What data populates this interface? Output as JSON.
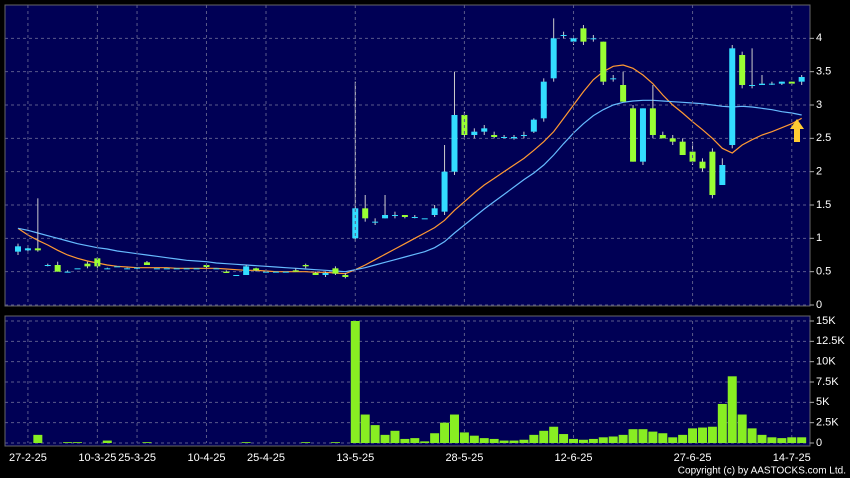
{
  "chart_data": [
    {
      "type": "candlestick",
      "ylim": [
        0,
        4.5
      ],
      "yticks": [
        0,
        0.5,
        1,
        1.5,
        2,
        2.5,
        3,
        3.5,
        4
      ],
      "grid": true,
      "up_color": "#33ddff",
      "down_color": "#99ff33",
      "open": [
        0.8,
        0.82,
        0.85,
        0.6,
        0.6,
        0.5,
        0.55,
        0.62,
        0.7,
        0.55,
        0.58,
        0.55,
        0.55,
        0.64,
        0.55,
        0.55,
        0.55,
        0.55,
        0.55,
        0.6,
        0.55,
        0.5,
        0.45,
        0.45,
        0.55,
        0.5,
        0.5,
        0.5,
        0.52,
        0.6,
        0.48,
        0.45,
        0.55,
        0.45,
        1.0,
        1.45,
        1.25,
        1.3,
        1.35,
        1.35,
        1.32,
        1.3,
        1.35,
        1.4,
        2.0,
        2.85,
        2.55,
        2.6,
        2.55,
        2.52,
        2.5,
        2.55,
        2.6,
        2.8,
        3.4,
        4.05,
        3.95,
        4.15,
        4.0,
        3.95,
        3.4,
        3.3,
        2.95,
        2.15,
        2.95,
        2.55,
        2.5,
        2.45,
        2.3,
        2.15,
        2.3,
        1.8,
        2.4,
        3.75,
        3.3,
        3.3,
        3.32,
        3.32,
        3.35,
        3.35
      ],
      "high": [
        0.92,
        0.9,
        1.6,
        0.62,
        0.65,
        0.52,
        0.55,
        0.65,
        0.72,
        0.56,
        0.58,
        0.56,
        0.56,
        0.66,
        0.55,
        0.55,
        0.55,
        0.55,
        0.55,
        0.62,
        0.55,
        0.52,
        0.45,
        0.6,
        0.56,
        0.5,
        0.5,
        0.5,
        0.55,
        0.62,
        0.5,
        0.5,
        0.58,
        0.48,
        3.35,
        1.65,
        1.3,
        1.65,
        1.4,
        1.35,
        1.35,
        1.3,
        1.5,
        2.4,
        3.5,
        2.9,
        2.65,
        2.7,
        2.6,
        2.55,
        2.55,
        2.6,
        2.8,
        3.4,
        4.3,
        4.1,
        4.05,
        4.2,
        4.05,
        3.95,
        3.45,
        3.5,
        3.0,
        2.95,
        3.3,
        2.6,
        2.55,
        2.5,
        2.45,
        2.2,
        2.35,
        2.2,
        3.9,
        3.8,
        3.85,
        3.45,
        3.35,
        3.35,
        3.35,
        3.45
      ],
      "low": [
        0.75,
        0.8,
        0.8,
        0.58,
        0.5,
        0.5,
        0.55,
        0.55,
        0.55,
        0.54,
        0.58,
        0.55,
        0.54,
        0.6,
        0.55,
        0.55,
        0.55,
        0.55,
        0.55,
        0.55,
        0.55,
        0.48,
        0.45,
        0.45,
        0.5,
        0.5,
        0.5,
        0.5,
        0.5,
        0.55,
        0.45,
        0.42,
        0.45,
        0.4,
        0.95,
        1.25,
        1.2,
        1.3,
        1.3,
        1.3,
        1.3,
        1.3,
        1.32,
        1.35,
        1.95,
        2.5,
        2.5,
        2.55,
        2.5,
        2.5,
        2.48,
        2.5,
        2.58,
        2.75,
        3.35,
        4.0,
        3.9,
        3.9,
        3.95,
        3.3,
        3.35,
        3.05,
        2.15,
        2.1,
        2.5,
        2.5,
        2.4,
        2.25,
        2.1,
        2.0,
        1.6,
        1.8,
        2.35,
        3.25,
        3.25,
        3.3,
        3.3,
        3.3,
        3.3,
        3.3
      ],
      "close": [
        0.88,
        0.85,
        0.82,
        0.6,
        0.5,
        0.5,
        0.55,
        0.58,
        0.58,
        0.55,
        0.58,
        0.55,
        0.56,
        0.6,
        0.55,
        0.55,
        0.55,
        0.55,
        0.55,
        0.57,
        0.55,
        0.48,
        0.45,
        0.58,
        0.52,
        0.5,
        0.5,
        0.5,
        0.5,
        0.58,
        0.45,
        0.48,
        0.47,
        0.42,
        1.45,
        1.3,
        1.25,
        1.35,
        1.35,
        1.32,
        1.32,
        1.3,
        1.45,
        2.0,
        2.85,
        2.55,
        2.6,
        2.65,
        2.52,
        2.52,
        2.52,
        2.55,
        2.78,
        3.35,
        4.0,
        4.05,
        4.0,
        3.95,
        4.0,
        3.35,
        3.4,
        3.05,
        2.15,
        2.95,
        2.55,
        2.5,
        2.45,
        2.25,
        2.15,
        2.05,
        1.65,
        2.1,
        3.85,
        3.3,
        3.3,
        3.32,
        3.32,
        3.35,
        3.32,
        3.42
      ],
      "series": [
        {
          "color": "#ff9933",
          "values": [
            1.15,
            1.05,
            0.97,
            0.9,
            0.82,
            0.75,
            0.7,
            0.66,
            0.63,
            0.6,
            0.58,
            0.57,
            0.56,
            0.56,
            0.56,
            0.56,
            0.55,
            0.55,
            0.55,
            0.55,
            0.55,
            0.54,
            0.53,
            0.52,
            0.52,
            0.51,
            0.5,
            0.5,
            0.5,
            0.5,
            0.49,
            0.49,
            0.48,
            0.47,
            0.53,
            0.6,
            0.68,
            0.76,
            0.84,
            0.92,
            1.0,
            1.08,
            1.16,
            1.27,
            1.42,
            1.55,
            1.68,
            1.8,
            1.9,
            2.0,
            2.1,
            2.2,
            2.32,
            2.45,
            2.6,
            2.8,
            3.0,
            3.2,
            3.38,
            3.5,
            3.58,
            3.6,
            3.55,
            3.45,
            3.32,
            3.15,
            3.0,
            2.88,
            2.75,
            2.63,
            2.5,
            2.35,
            2.28,
            2.4,
            2.48,
            2.55,
            2.6,
            2.66,
            2.72,
            2.8
          ]
        },
        {
          "color": "#66bbff",
          "values": [
            1.15,
            1.12,
            1.08,
            1.04,
            1.0,
            0.96,
            0.92,
            0.89,
            0.86,
            0.84,
            0.81,
            0.79,
            0.77,
            0.75,
            0.73,
            0.71,
            0.69,
            0.67,
            0.66,
            0.65,
            0.63,
            0.62,
            0.61,
            0.6,
            0.59,
            0.58,
            0.57,
            0.56,
            0.55,
            0.54,
            0.53,
            0.52,
            0.51,
            0.5,
            0.53,
            0.56,
            0.6,
            0.64,
            0.68,
            0.72,
            0.76,
            0.8,
            0.86,
            0.95,
            1.08,
            1.2,
            1.32,
            1.44,
            1.55,
            1.66,
            1.77,
            1.88,
            1.98,
            2.1,
            2.25,
            2.42,
            2.58,
            2.72,
            2.84,
            2.93,
            3.0,
            3.04,
            3.06,
            3.07,
            3.07,
            3.06,
            3.05,
            3.04,
            3.03,
            3.02,
            3.0,
            2.98,
            2.97,
            2.98,
            2.97,
            2.95,
            2.93,
            2.9,
            2.88,
            2.85
          ]
        }
      ]
    },
    {
      "type": "bar",
      "color": "#88ee22",
      "ylim": [
        0,
        15000
      ],
      "yticks": [
        0,
        {
          "value": 2500,
          "label": "2.5K"
        },
        {
          "value": 5000,
          "label": "5K"
        },
        {
          "value": 7500,
          "label": "7.5K"
        },
        {
          "value": 10000,
          "label": "10K"
        },
        {
          "value": 12500,
          "label": "12.5K"
        },
        {
          "value": 15000,
          "label": "15K"
        }
      ],
      "grid": true,
      "categories": [
        null,
        "27-2-25",
        null,
        null,
        null,
        null,
        null,
        null,
        "10-3-25",
        null,
        null,
        null,
        "25-3-25",
        null,
        null,
        null,
        null,
        null,
        null,
        "10-4-25",
        null,
        null,
        null,
        null,
        null,
        "25-4-25",
        null,
        null,
        null,
        null,
        null,
        null,
        null,
        null,
        "13-5-25",
        null,
        null,
        null,
        null,
        null,
        null,
        null,
        null,
        null,
        null,
        "28-5-25",
        null,
        null,
        null,
        null,
        null,
        null,
        null,
        null,
        null,
        null,
        "12-6-25",
        null,
        null,
        null,
        null,
        null,
        null,
        null,
        null,
        null,
        null,
        null,
        "27-6-25",
        null,
        null,
        null,
        null,
        null,
        null,
        null,
        null,
        null,
        "14-7-25",
        null
      ],
      "values": [
        0,
        0,
        1000,
        0,
        0,
        100,
        100,
        0,
        0,
        300,
        0,
        0,
        0,
        100,
        0,
        0,
        0,
        0,
        0,
        0,
        0,
        0,
        0,
        100,
        0,
        0,
        0,
        0,
        0,
        100,
        0,
        0,
        100,
        0,
        15000,
        3500,
        2200,
        1000,
        1500,
        500,
        600,
        200,
        1200,
        2500,
        3500,
        1300,
        900,
        600,
        500,
        300,
        300,
        400,
        1000,
        1500,
        2000,
        1100,
        500,
        400,
        500,
        700,
        800,
        1000,
        1700,
        1700,
        1400,
        1200,
        700,
        1000,
        1800,
        1900,
        2000,
        4800,
        8200,
        3500,
        1800,
        1000,
        700,
        600,
        700,
        700
      ]
    }
  ],
  "copyright": "Copyright (c) by AASTOCKS.com Ltd."
}
